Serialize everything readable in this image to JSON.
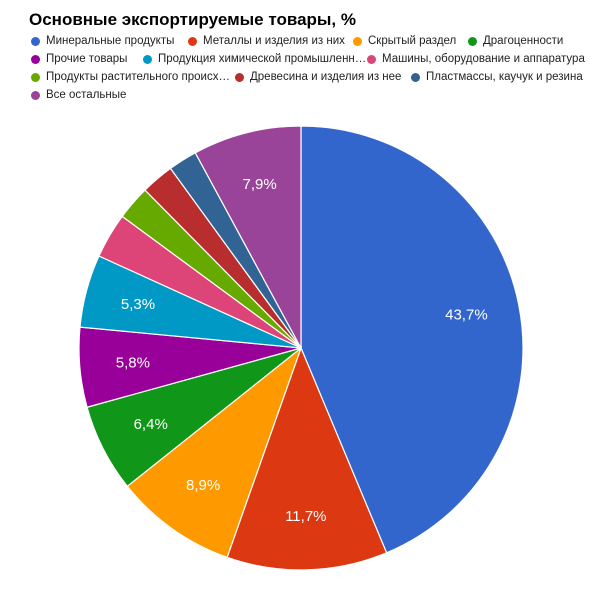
{
  "chart_data": {
    "type": "pie",
    "title": "Основные экспортируемые товары, %",
    "legend_position": "top",
    "slices": [
      {
        "name": "Минеральные продукты",
        "value": 43.7,
        "label": "43,7%",
        "color": "#3366cc"
      },
      {
        "name": "Металлы и изделия из них",
        "value": 11.7,
        "label": "11,7%",
        "color": "#dc3912"
      },
      {
        "name": "Скрытый раздел",
        "value": 8.9,
        "label": "8,9%",
        "color": "#ff9900"
      },
      {
        "name": "Драгоценности",
        "value": 6.4,
        "label": "6,4%",
        "color": "#109618"
      },
      {
        "name": "Прочие товары",
        "value": 5.8,
        "label": "5,8%",
        "color": "#990099"
      },
      {
        "name": "Продукция химической промышленн…",
        "value": 5.3,
        "label": "5,3%",
        "color": "#0099c6"
      },
      {
        "name": "Машины, оборудование и аппаратура",
        "value": 3.3,
        "label": "",
        "color": "#dd4477"
      },
      {
        "name": "Продукты растительного происх…",
        "value": 2.5,
        "label": "",
        "color": "#66aa00"
      },
      {
        "name": "Древесина и изделия из нее",
        "value": 2.4,
        "label": "",
        "color": "#b82e2e"
      },
      {
        "name": "Пластмассы, каучук и резина",
        "value": 2.1,
        "label": "",
        "color": "#316395"
      },
      {
        "name": "Все остальные",
        "value": 7.9,
        "label": "7,9%",
        "color": "#994499"
      }
    ]
  }
}
